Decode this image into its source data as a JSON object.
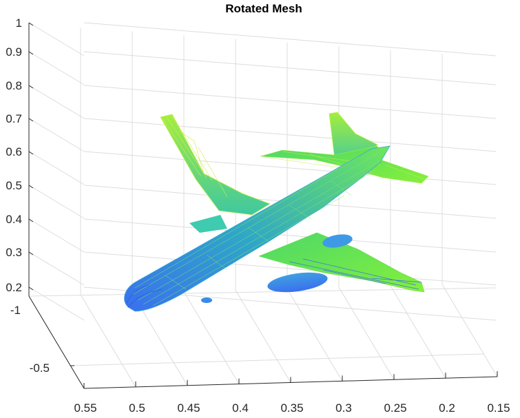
{
  "chart_data": {
    "type": "surface",
    "title": "Rotated Mesh",
    "xlabel": "",
    "ylabel": "",
    "zlabel": "",
    "grid": true,
    "x_axis": {
      "ticks": [
        "0.55",
        "0.5",
        "0.45",
        "0.4",
        "0.35",
        "0.3",
        "0.25",
        "0.2",
        "0.15"
      ],
      "range": [
        0.15,
        0.55
      ],
      "direction": "reversed"
    },
    "y_axis": {
      "ticks": [
        "-1",
        "-0.5"
      ],
      "range": [
        -1,
        -0.4
      ]
    },
    "z_axis": {
      "ticks": [
        "0.2",
        "0.3",
        "0.4",
        "0.5",
        "0.6",
        "0.7",
        "0.8",
        "0.9",
        "1"
      ],
      "range": [
        0.15,
        1
      ]
    },
    "colormap": "parula",
    "colors": {
      "low": "#3a6ff0",
      "mid": "#2fb6a0",
      "high": "#7ff03a",
      "top": "#c8f04a"
    }
  }
}
